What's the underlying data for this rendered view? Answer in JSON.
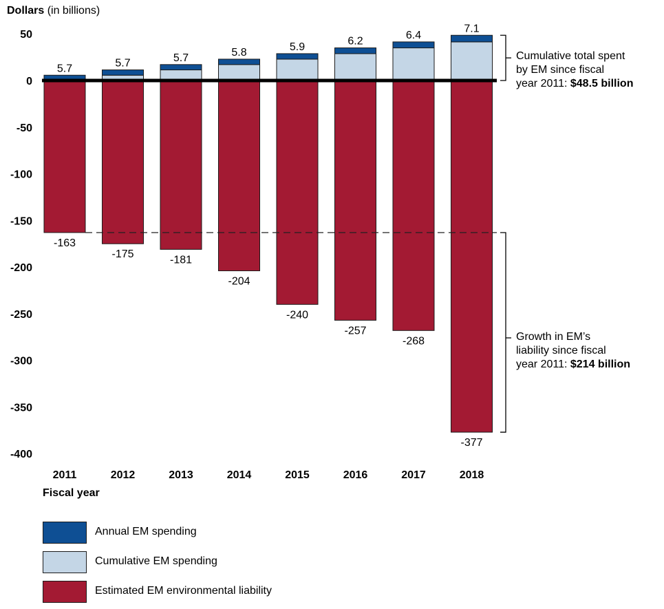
{
  "ylabel_bold": "Dollars",
  "ylabel_rest": "(in billions)",
  "xlabel": "Fiscal year",
  "colors": {
    "annual": "#0e4f94",
    "cumulative": "#c4d6e6",
    "liability": "#a31a33",
    "stroke": "#1a1a1a"
  },
  "chart_data": {
    "type": "bar",
    "xlabel": "Fiscal year",
    "ylabel": "Dollars (in billions)",
    "ylim": [
      -400,
      50
    ],
    "yticks": [
      "50",
      "0",
      "-50",
      "-100",
      "-150",
      "-200",
      "-250",
      "-300",
      "-350",
      "-400"
    ],
    "ytick_values": [
      50,
      0,
      -50,
      -100,
      -150,
      -200,
      -250,
      -300,
      -350,
      -400
    ],
    "categories": [
      "2011",
      "2012",
      "2013",
      "2014",
      "2015",
      "2016",
      "2017",
      "2018"
    ],
    "series": [
      {
        "name": "Annual EM spending",
        "values": [
          5.7,
          5.7,
          5.7,
          5.8,
          5.9,
          6.2,
          6.4,
          7.1
        ],
        "labels": [
          "5.7",
          "5.7",
          "5.7",
          "5.8",
          "5.9",
          "6.2",
          "6.4",
          "7.1"
        ]
      },
      {
        "name": "Cumulative EM spending",
        "values": [
          0,
          5.7,
          11.4,
          17.1,
          22.9,
          28.8,
          35.0,
          41.4
        ]
      },
      {
        "name": "Estimated EM environmental liability",
        "values": [
          -163,
          -175,
          -181,
          -204,
          -240,
          -257,
          -268,
          -377
        ],
        "labels": [
          "-163",
          "-175",
          "-181",
          "-204",
          "-240",
          "-257",
          "-268",
          "-377"
        ]
      }
    ],
    "reference_line": -163,
    "grid": false,
    "legend_position": "bottom-left"
  },
  "annotations": {
    "spent": {
      "line1": "Cumulative total spent",
      "line2": "by EM since fiscal",
      "line3_prefix": "year 2011: ",
      "line3_bold": "$48.5 billion"
    },
    "growth": {
      "line1": "Growth in EM’s",
      "line2": "liability since fiscal",
      "line3_prefix": "year 2011: ",
      "line3_bold": "$214 billion"
    }
  },
  "legend": [
    {
      "label": "Annual EM spending",
      "color": "#0e4f94"
    },
    {
      "label": "Cumulative EM spending",
      "color": "#c4d6e6"
    },
    {
      "label": "Estimated EM environmental liability",
      "color": "#a31a33"
    }
  ]
}
